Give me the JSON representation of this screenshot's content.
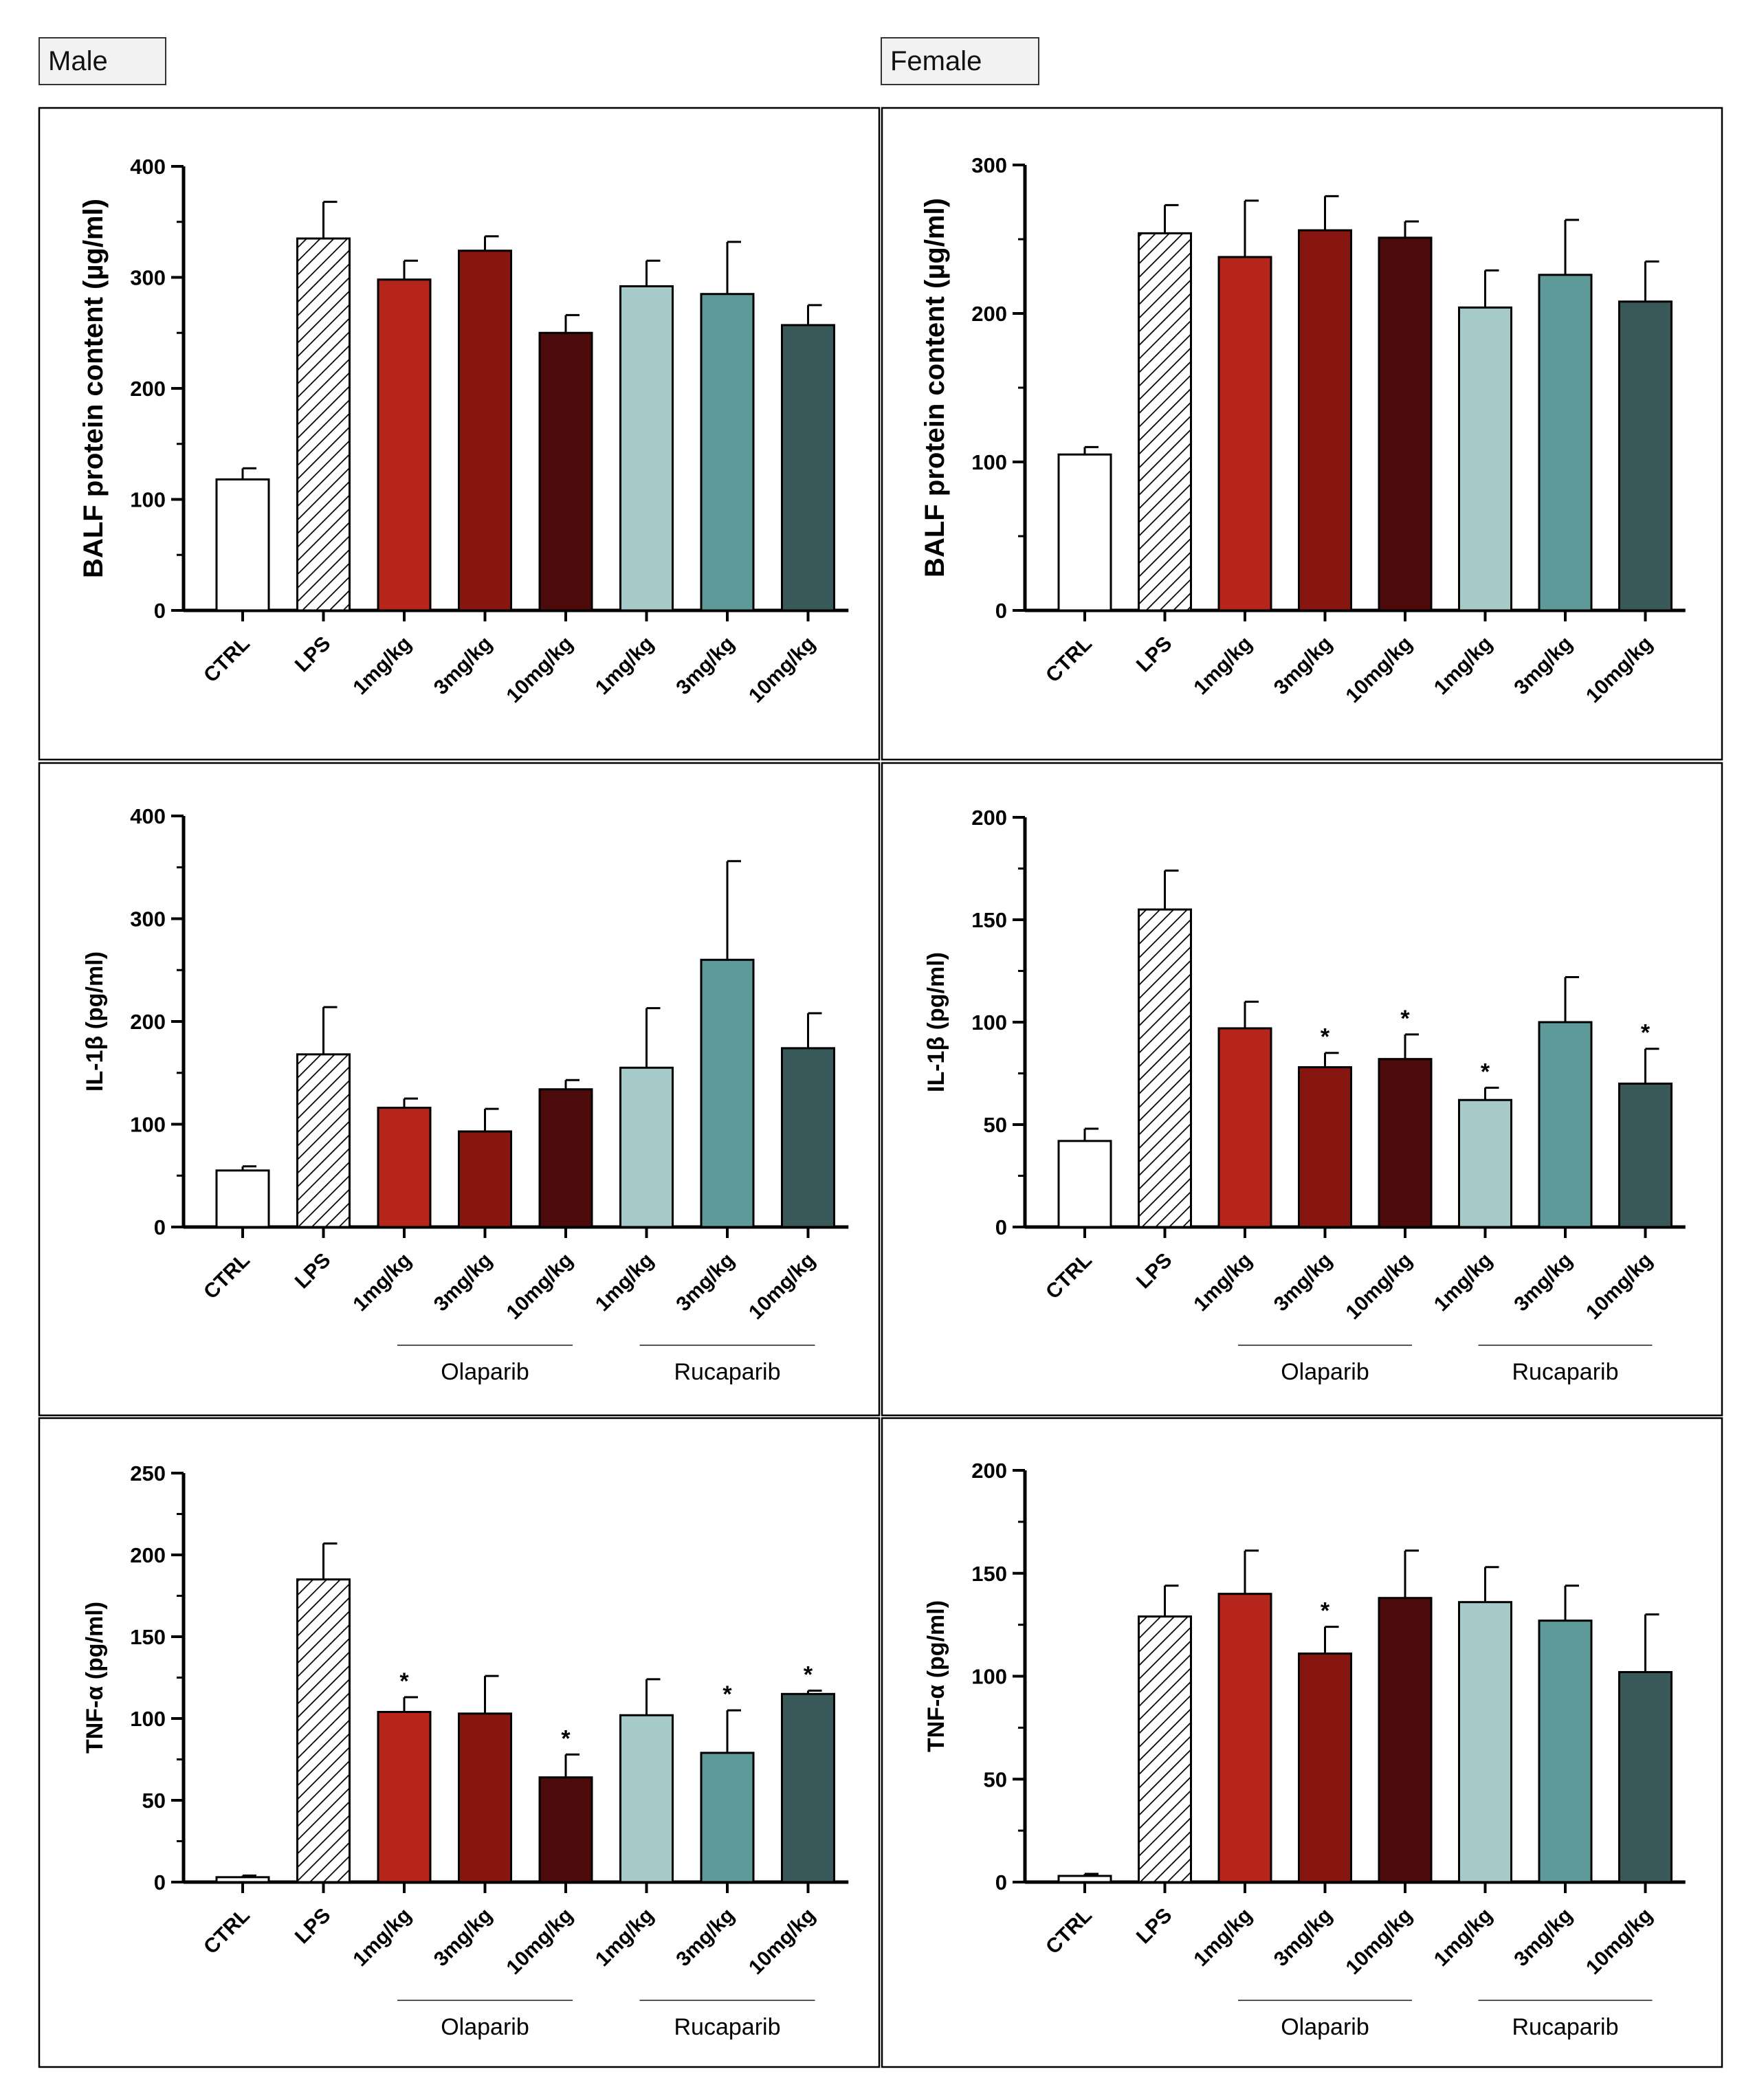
{
  "labels": {
    "male": "Male",
    "female": "Female"
  },
  "colors": {
    "ctrl": "#ffffff",
    "lps": "hatch",
    "ola_1": "#b5251c",
    "ola_3": "#86160f",
    "ola_10": "#4d0a0a",
    "ruc_1": "#a6c9ca",
    "ruc_3": "#5f9a9a",
    "ruc_10": "#385859",
    "outline": "#000000"
  },
  "chart_data": [
    {
      "id": "male-balf",
      "type": "bar",
      "ylabel": "BALF protein content (µg/ml)",
      "ylim": [
        0,
        400
      ],
      "yticks": [
        0,
        100,
        200,
        300,
        400
      ],
      "categories": [
        "CTRL",
        "LPS",
        "1mg/kg",
        "3mg/kg",
        "10mg/kg",
        "1mg/kg",
        "3mg/kg",
        "10mg/kg"
      ],
      "values": [
        118,
        335,
        298,
        324,
        250,
        292,
        285,
        257
      ],
      "errors": [
        10,
        33,
        17,
        13,
        16,
        23,
        47,
        18
      ],
      "significance": [
        "",
        "",
        "",
        "",
        "",
        "",
        "",
        ""
      ],
      "groups": []
    },
    {
      "id": "female-balf",
      "type": "bar",
      "ylabel": "BALF protein content (µg/ml)",
      "ylim": [
        0,
        300
      ],
      "yticks": [
        0,
        100,
        200,
        300
      ],
      "categories": [
        "CTRL",
        "LPS",
        "1mg/kg",
        "3mg/kg",
        "10mg/kg",
        "1mg/kg",
        "3mg/kg",
        "10mg/kg"
      ],
      "values": [
        105,
        254,
        238,
        256,
        251,
        204,
        226,
        208
      ],
      "errors": [
        5,
        19,
        38,
        23,
        11,
        25,
        37,
        27
      ],
      "significance": [
        "",
        "",
        "",
        "",
        "",
        "",
        "",
        ""
      ],
      "groups": []
    },
    {
      "id": "male-il1b",
      "type": "bar",
      "ylabel": "IL-1β (pg/ml)",
      "ylim": [
        0,
        400
      ],
      "yticks": [
        0,
        100,
        200,
        300,
        400
      ],
      "categories": [
        "CTRL",
        "LPS",
        "1mg/kg",
        "3mg/kg",
        "10mg/kg",
        "1mg/kg",
        "3mg/kg",
        "10mg/kg"
      ],
      "values": [
        55,
        168,
        116,
        93,
        134,
        155,
        260,
        174
      ],
      "errors": [
        4,
        46,
        9,
        22,
        9,
        58,
        96,
        34
      ],
      "significance": [
        "",
        "",
        "",
        "",
        "",
        "",
        "",
        ""
      ],
      "groups": [
        {
          "name": "Olaparib",
          "from": 2,
          "to": 4
        },
        {
          "name": "Rucaparib",
          "from": 5,
          "to": 7
        }
      ]
    },
    {
      "id": "female-il1b",
      "type": "bar",
      "ylabel": "IL-1β (pg/ml)",
      "ylim": [
        0,
        200
      ],
      "yticks": [
        0,
        50,
        100,
        150,
        200
      ],
      "categories": [
        "CTRL",
        "LPS",
        "1mg/kg",
        "3mg/kg",
        "10mg/kg",
        "1mg/kg",
        "3mg/kg",
        "10mg/kg"
      ],
      "values": [
        42,
        155,
        97,
        78,
        82,
        62,
        100,
        70
      ],
      "errors": [
        6,
        19,
        13,
        7,
        12,
        6,
        22,
        17
      ],
      "significance": [
        "",
        "",
        "",
        "*",
        "*",
        "*",
        "",
        "*"
      ],
      "groups": [
        {
          "name": "Olaparib",
          "from": 2,
          "to": 4
        },
        {
          "name": "Rucaparib",
          "from": 5,
          "to": 7
        }
      ]
    },
    {
      "id": "male-tnfa",
      "type": "bar",
      "ylabel": "TNF-α (pg/ml)",
      "ylim": [
        0,
        250
      ],
      "yticks": [
        0,
        50,
        100,
        150,
        200,
        250
      ],
      "categories": [
        "CTRL",
        "LPS",
        "1mg/kg",
        "3mg/kg",
        "10mg/kg",
        "1mg/kg",
        "3mg/kg",
        "10mg/kg"
      ],
      "values": [
        3,
        185,
        104,
        103,
        64,
        102,
        79,
        115
      ],
      "errors": [
        1,
        22,
        9,
        23,
        14,
        22,
        26,
        2
      ],
      "significance": [
        "",
        "",
        "*",
        "",
        "*",
        "",
        "*",
        "*"
      ],
      "groups": [
        {
          "name": "Olaparib",
          "from": 2,
          "to": 4
        },
        {
          "name": "Rucaparib",
          "from": 5,
          "to": 7
        }
      ]
    },
    {
      "id": "female-tnfa",
      "type": "bar",
      "ylabel": "TNF-α (pg/ml)",
      "ylim": [
        0,
        200
      ],
      "yticks": [
        0,
        50,
        100,
        150,
        200
      ],
      "categories": [
        "CTRL",
        "LPS",
        "1mg/kg",
        "3mg/kg",
        "10mg/kg",
        "1mg/kg",
        "3mg/kg",
        "10mg/kg"
      ],
      "values": [
        3,
        129,
        140,
        111,
        138,
        136,
        127,
        102
      ],
      "errors": [
        1,
        15,
        21,
        13,
        23,
        17,
        17,
        28
      ],
      "significance": [
        "",
        "",
        "",
        "*",
        "",
        "",
        "",
        ""
      ],
      "groups": [
        {
          "name": "Olaparib",
          "from": 2,
          "to": 4
        },
        {
          "name": "Rucaparib",
          "from": 5,
          "to": 7
        }
      ]
    }
  ]
}
